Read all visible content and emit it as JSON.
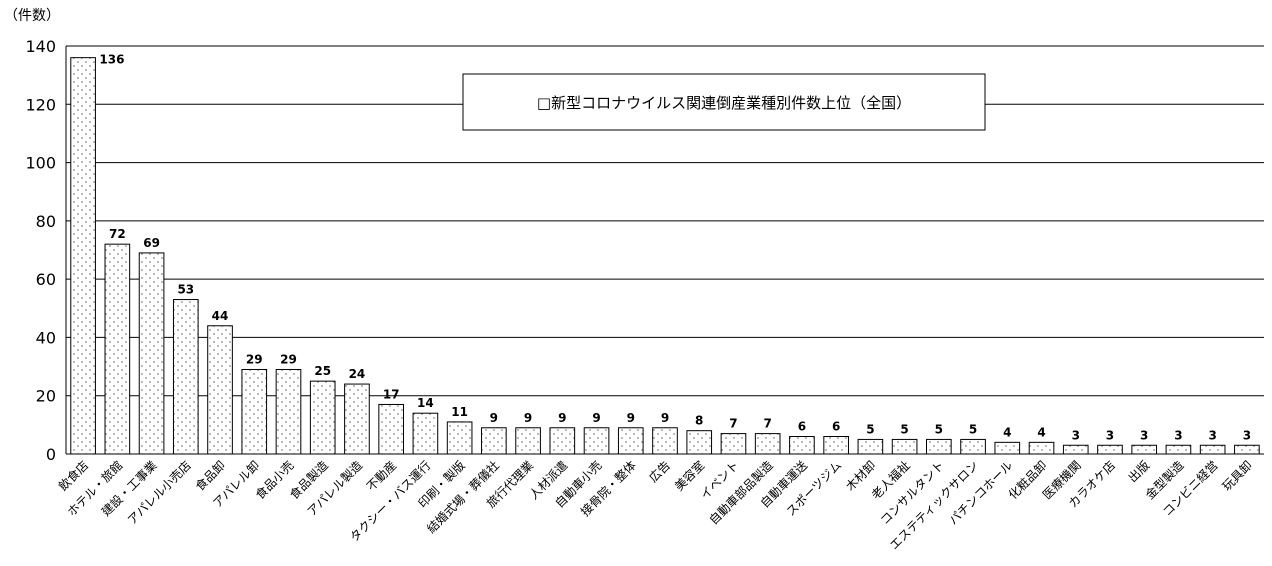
{
  "chart_data": {
    "type": "bar",
    "title": "□新型コロナウイルス関連倒産業種別件数上位（全国）",
    "ylabel": "（件数）",
    "xlabel": "",
    "ylim": [
      0,
      140
    ],
    "yticks": [
      0,
      20,
      40,
      60,
      80,
      100,
      120,
      140
    ],
    "grid": true,
    "legend": "none",
    "categories": [
      "飲食店",
      "ホテル・旅館",
      "建設・工事業",
      "アパレル小売店",
      "食品卸",
      "アパレル卸",
      "食品小売",
      "食品製造",
      "アパレル製造",
      "不動産",
      "タクシー・バス運行",
      "印刷・製版",
      "結婚式場・葬儀社",
      "旅行代理業",
      "人材派遣",
      "自動車小売",
      "接骨院・整体",
      "広告",
      "美容室",
      "イベント",
      "自動車部品製造",
      "自動車運送",
      "スポーツジム",
      "木材卸",
      "老人福祉",
      "コンサルタント",
      "エステティックサロン",
      "パチンコホール",
      "化粧品卸",
      "医療機関",
      "カラオケ店",
      "出版",
      "金型製造",
      "コンビニ経営",
      "玩具卸"
    ],
    "values": [
      136,
      72,
      69,
      53,
      44,
      29,
      29,
      25,
      24,
      17,
      14,
      11,
      9,
      9,
      9,
      9,
      9,
      9,
      8,
      7,
      7,
      6,
      6,
      5,
      5,
      5,
      5,
      4,
      4,
      3,
      3,
      3,
      3,
      3,
      3
    ],
    "bar_fill": "#ffffff",
    "bar_pattern_color": "#888888",
    "bar_stroke": "#000000"
  }
}
